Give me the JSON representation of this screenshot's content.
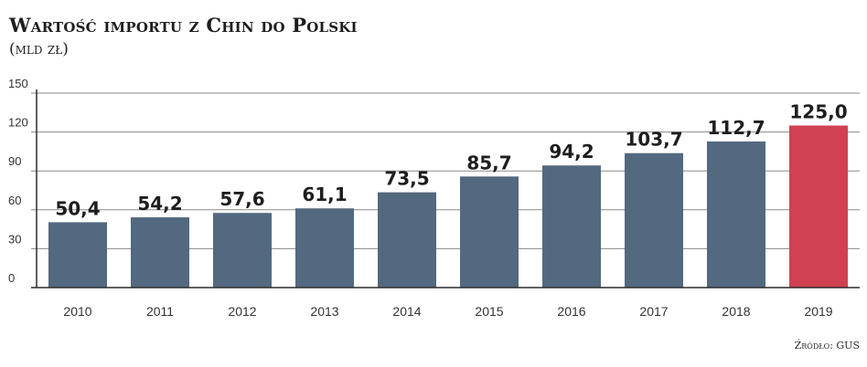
{
  "chart_data": {
    "type": "bar",
    "title": "Wartość importu z Chin do Polski",
    "subtitle": "(mld zł)",
    "source": "Źródło: GUS",
    "categories": [
      "2010",
      "2011",
      "2012",
      "2013",
      "2014",
      "2015",
      "2016",
      "2017",
      "2018",
      "2019"
    ],
    "values": [
      50.4,
      54.2,
      57.6,
      61.1,
      73.5,
      85.7,
      94.2,
      103.7,
      112.7,
      125.0
    ],
    "value_labels": [
      "50,4",
      "54,2",
      "57,6",
      "61,1",
      "73,5",
      "85,7",
      "94,2",
      "103,7",
      "112,7",
      "125,0"
    ],
    "yticks": [
      0,
      30,
      60,
      90,
      120,
      150
    ],
    "ylim": [
      0,
      150
    ],
    "xlabel": "",
    "ylabel": "",
    "grid": true,
    "legend": "none",
    "colors": {
      "bar": "#53697f",
      "highlight": "#cf4153",
      "grid": "#8a8a8a",
      "axis": "#2b2b2b"
    },
    "highlight_index": 9
  }
}
